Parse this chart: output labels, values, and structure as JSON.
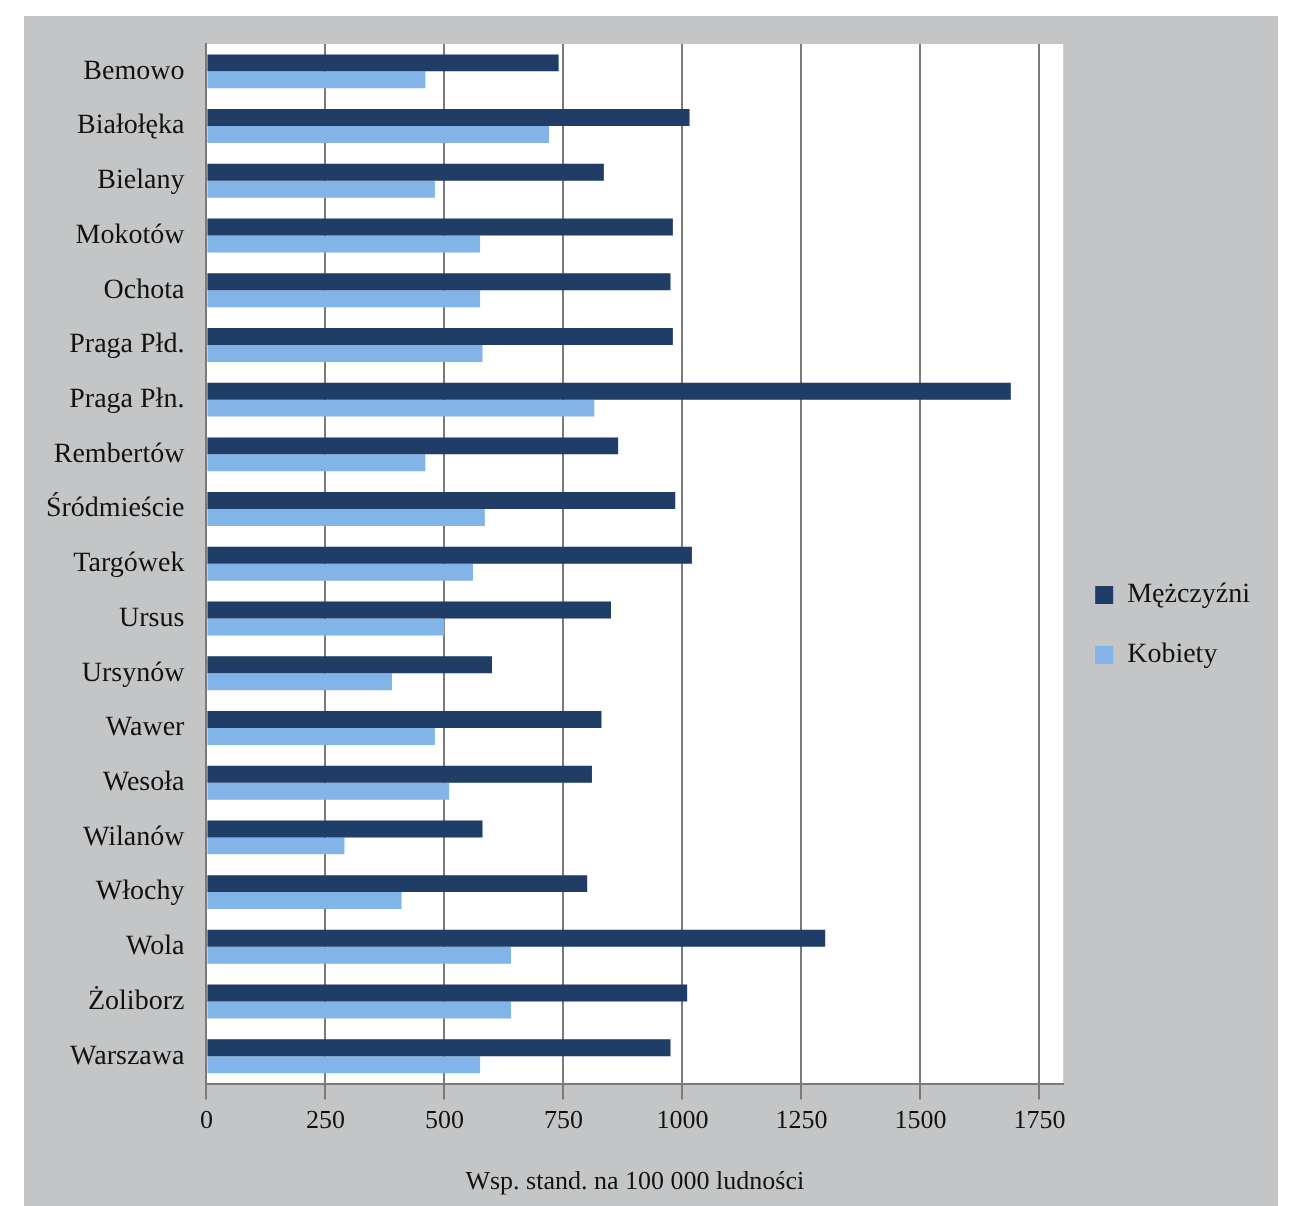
{
  "chart_data": {
    "type": "bar",
    "orientation": "horizontal",
    "xlabel": "Wsp. stand. na 100 000 ludności",
    "categories": [
      "Bemowo",
      "Białołęka",
      "Bielany",
      "Mokotów",
      "Ochota",
      "Praga Płd.",
      "Praga Płn.",
      "Rembertów",
      "Śródmieście",
      "Targówek",
      "Ursus",
      "Ursynów",
      "Wawer",
      "Wesoła",
      "Wilanów",
      "Włochy",
      "Wola",
      "Żoliborz",
      "Warszawa"
    ],
    "series": [
      {
        "name": "Mężczyźni",
        "color": "#1f3d66",
        "values": [
          740,
          1015,
          835,
          980,
          975,
          980,
          1690,
          865,
          985,
          1020,
          850,
          600,
          830,
          810,
          580,
          800,
          1300,
          1010,
          975
        ]
      },
      {
        "name": "Kobiety",
        "color": "#82b4e8",
        "values": [
          460,
          720,
          480,
          575,
          575,
          580,
          815,
          460,
          585,
          560,
          500,
          390,
          480,
          510,
          290,
          410,
          640,
          640,
          575
        ]
      }
    ],
    "xlim": [
      0,
      1800
    ],
    "xticks": [
      0,
      250,
      500,
      750,
      1000,
      1250,
      1500,
      1750
    ],
    "grid": "x",
    "legend": "right"
  }
}
